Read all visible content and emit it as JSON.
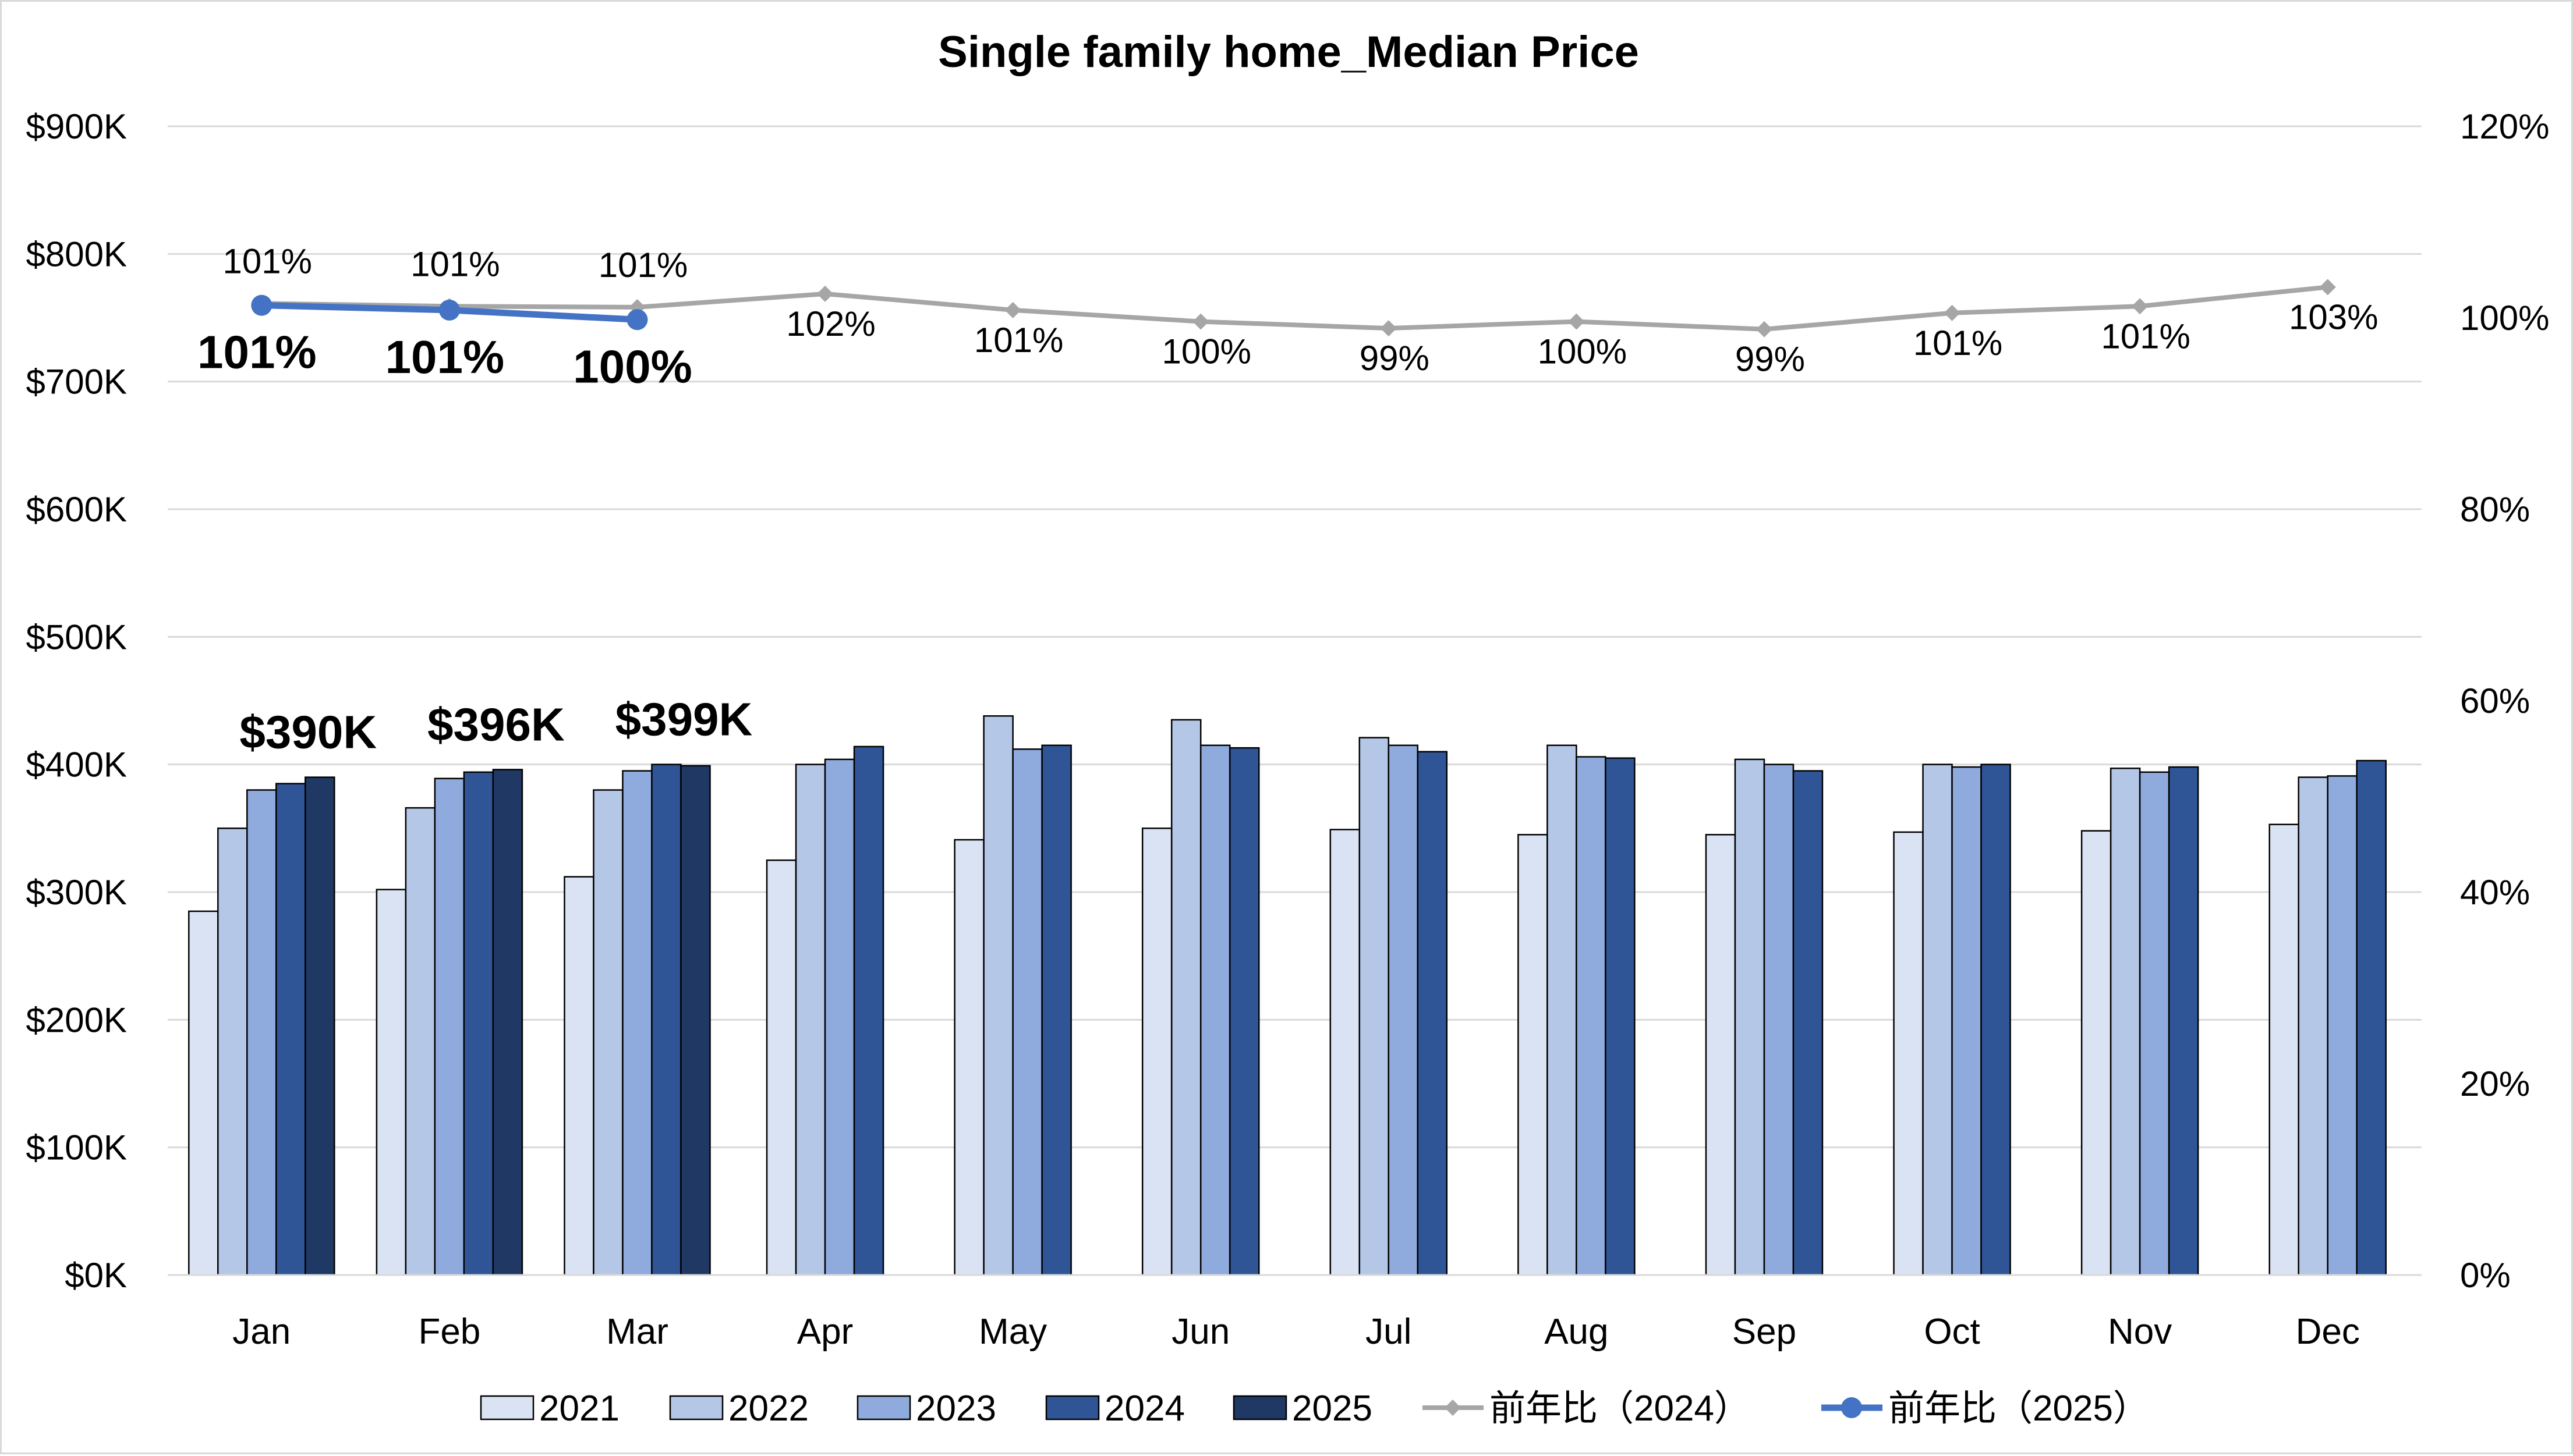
{
  "chart_data": {
    "type": "bar",
    "title": "Single family home_Median Price",
    "categories": [
      "Jan",
      "Feb",
      "Mar",
      "Apr",
      "May",
      "Jun",
      "Jul",
      "Aug",
      "Sep",
      "Oct",
      "Nov",
      "Dec"
    ],
    "y_axis": {
      "min": 0,
      "max": 900000,
      "step": 100000,
      "ticks": [
        "$0K",
        "$100K",
        "$200K",
        "$300K",
        "$400K",
        "$500K",
        "$600K",
        "$700K",
        "$800K",
        "$900K"
      ]
    },
    "y2_axis": {
      "min": 0,
      "max": 120,
      "step": 20,
      "ticks": [
        "0%",
        "20%",
        "40%",
        "60%",
        "80%",
        "100%",
        "120%"
      ]
    },
    "grid": true,
    "legend_position": "bottom",
    "series": [
      {
        "name": "2021",
        "type": "bar",
        "axis": "left",
        "color": "#dae3f3",
        "values": [
          285000,
          302000,
          312000,
          325000,
          341000,
          350000,
          349000,
          345000,
          345000,
          347000,
          348000,
          353000
        ]
      },
      {
        "name": "2022",
        "type": "bar",
        "axis": "left",
        "color": "#b4c7e7",
        "values": [
          350000,
          366000,
          380000,
          400000,
          438000,
          435000,
          421000,
          415000,
          404000,
          400000,
          397000,
          390000
        ]
      },
      {
        "name": "2023",
        "type": "bar",
        "axis": "left",
        "color": "#8faadc",
        "values": [
          380000,
          389000,
          395000,
          404000,
          412000,
          415000,
          415000,
          406000,
          400000,
          398000,
          394000,
          391000
        ]
      },
      {
        "name": "2024",
        "type": "bar",
        "axis": "left",
        "color": "#2f5597",
        "values": [
          385000,
          394000,
          400000,
          414000,
          415000,
          413000,
          410000,
          405000,
          395000,
          400000,
          398000,
          403000
        ]
      },
      {
        "name": "2025",
        "type": "bar",
        "axis": "left",
        "color": "#203864",
        "values": [
          390000,
          396000,
          399000,
          null,
          null,
          null,
          null,
          null,
          null,
          null,
          null,
          null
        ]
      },
      {
        "name": "前年比（2024）",
        "type": "line",
        "axis": "right",
        "color": "#a6a6a6",
        "marker": "diamond",
        "values": [
          101.5,
          101.2,
          101.1,
          102.5,
          100.8,
          99.6,
          98.9,
          99.6,
          98.8,
          100.5,
          101.2,
          103.2
        ],
        "labels": [
          "101%",
          "101%",
          "101%",
          "102%",
          "101%",
          "100%",
          "99%",
          "100%",
          "99%",
          "101%",
          "101%",
          "103%"
        ]
      },
      {
        "name": "前年比（2025）",
        "type": "line",
        "axis": "right",
        "color": "#4472c4",
        "marker": "circle",
        "values": [
          101.3,
          100.8,
          99.8,
          null,
          null,
          null,
          null,
          null,
          null,
          null,
          null,
          null
        ],
        "labels": [
          "101%",
          "101%",
          "100%"
        ]
      }
    ],
    "annotations": [
      {
        "category": "Jan",
        "text": "$390K"
      },
      {
        "category": "Feb",
        "text": "$396K"
      },
      {
        "category": "Mar",
        "text": "$399K"
      }
    ]
  }
}
